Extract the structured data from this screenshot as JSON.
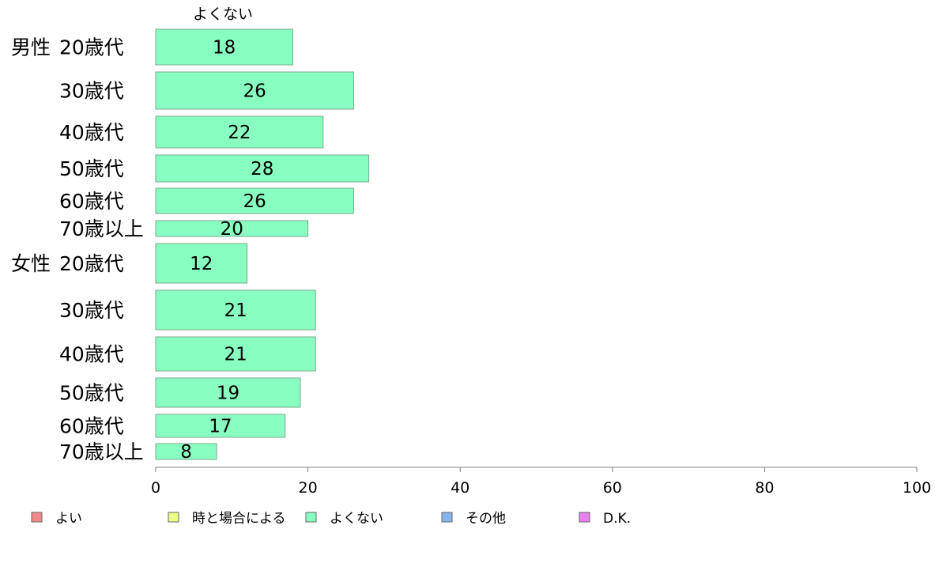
{
  "chart_data": {
    "type": "bar",
    "orientation": "horizontal",
    "series_header": "よくない",
    "groups": [
      {
        "name": "男性",
        "categories": [
          "20歳代",
          "30歳代",
          "40歳代",
          "50歳代",
          "60歳代",
          "70歳以上"
        ],
        "values": [
          18,
          26,
          22,
          28,
          26,
          20
        ]
      },
      {
        "name": "女性",
        "categories": [
          "20歳代",
          "30歳代",
          "40歳代",
          "50歳代",
          "60歳代",
          "70歳以上"
        ],
        "values": [
          12,
          21,
          21,
          19,
          17,
          8
        ]
      }
    ],
    "xlim": [
      0,
      100
    ],
    "xticks": [
      "0",
      "20",
      "40",
      "60",
      "80",
      "100"
    ],
    "grid": false,
    "legend_position": "bottom",
    "legend": [
      {
        "label": "よい",
        "color": "#f08a8a"
      },
      {
        "label": "時と場合による",
        "color": "#eeff88"
      },
      {
        "label": "よくない",
        "color": "#88ffc0"
      },
      {
        "label": "その他",
        "color": "#88b4f0"
      },
      {
        "label": "D.K.",
        "color": "#e880f0"
      }
    ],
    "bar_color": "#88ffc0"
  }
}
